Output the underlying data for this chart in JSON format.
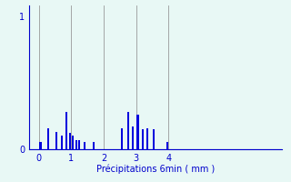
{
  "xlabel": "Précipitations 6min ( mm )",
  "bar_color": "#0000dd",
  "bg_color": "#e8f8f5",
  "axis_color": "#0000cc",
  "grid_color": "#999999",
  "xlim": [
    -0.3,
    7.5
  ],
  "ylim": [
    0,
    1.08
  ],
  "yticks": [
    0,
    1
  ],
  "xticks": [
    0,
    1,
    2,
    3,
    4
  ],
  "bar_positions": [
    0.05,
    0.3,
    0.55,
    0.7,
    0.85,
    0.95,
    1.05,
    1.15,
    1.25,
    1.4,
    1.7,
    2.55,
    2.75,
    2.9,
    3.05,
    3.2,
    3.35,
    3.55,
    3.95
  ],
  "bar_heights": [
    0.055,
    0.16,
    0.13,
    0.1,
    0.28,
    0.12,
    0.1,
    0.07,
    0.07,
    0.055,
    0.055,
    0.16,
    0.28,
    0.17,
    0.26,
    0.15,
    0.16,
    0.15,
    0.055
  ],
  "bar_width": 0.06,
  "ylabel_fontsize": 7,
  "xlabel_fontsize": 7,
  "tick_fontsize": 7
}
